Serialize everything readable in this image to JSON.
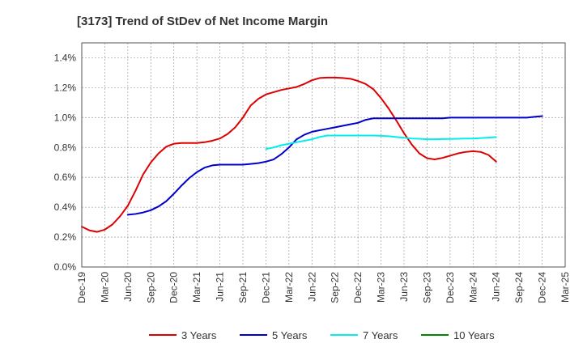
{
  "chart_data": {
    "type": "line",
    "title": "[3173]  Trend of StDev of Net Income Margin",
    "xlabel": "",
    "ylabel": "",
    "x_ticks": [
      "Dec-19",
      "Mar-20",
      "Jun-20",
      "Sep-20",
      "Dec-20",
      "Mar-21",
      "Jun-21",
      "Sep-21",
      "Dec-21",
      "Mar-22",
      "Jun-22",
      "Sep-22",
      "Dec-22",
      "Mar-23",
      "Jun-23",
      "Sep-23",
      "Dec-23",
      "Mar-24",
      "Jun-24",
      "Sep-24",
      "Dec-24",
      "Mar-25"
    ],
    "y_ticks": [
      "0.0%",
      "0.2%",
      "0.4%",
      "0.6%",
      "0.8%",
      "1.0%",
      "1.2%",
      "1.4%"
    ],
    "ylim": [
      0,
      1.5
    ],
    "grid": true,
    "legend_position": "bottom",
    "series": [
      {
        "name": "3 Years",
        "color": "#dd0000",
        "start_index": 0,
        "values": [
          0.27,
          0.245,
          0.235,
          0.25,
          0.285,
          0.34,
          0.41,
          0.51,
          0.62,
          0.7,
          0.76,
          0.805,
          0.825,
          0.83,
          0.83,
          0.83,
          0.835,
          0.845,
          0.86,
          0.89,
          0.935,
          1.0,
          1.08,
          1.125,
          1.155,
          1.17,
          1.185,
          1.195,
          1.205,
          1.225,
          1.25,
          1.265,
          1.268,
          1.268,
          1.265,
          1.26,
          1.245,
          1.225,
          1.19,
          1.13,
          1.06,
          0.98,
          0.895,
          0.82,
          0.76,
          0.728,
          0.72,
          0.73,
          0.745,
          0.76,
          0.77,
          0.775,
          0.77,
          0.75,
          0.705
        ]
      },
      {
        "name": "5 Years",
        "color": "#0000cc",
        "start_index": 6,
        "values": [
          0.35,
          0.355,
          0.365,
          0.38,
          0.405,
          0.44,
          0.49,
          0.545,
          0.595,
          0.635,
          0.665,
          0.68,
          0.685,
          0.685,
          0.685,
          0.685,
          0.69,
          0.695,
          0.705,
          0.72,
          0.755,
          0.8,
          0.855,
          0.885,
          0.905,
          0.915,
          0.925,
          0.935,
          0.945,
          0.955,
          0.965,
          0.985,
          0.995,
          0.995,
          0.995,
          0.995,
          0.995,
          0.995,
          0.995,
          0.995,
          0.995,
          0.995,
          1.0,
          1.0,
          1.0,
          1.0,
          1.0,
          1.0,
          1.0,
          1.0,
          1.0,
          1.0,
          1.0,
          1.005,
          1.01
        ]
      },
      {
        "name": "7 Years",
        "color": "#00eeee",
        "start_index": 24,
        "values": [
          0.79,
          0.8,
          0.815,
          0.825,
          0.835,
          0.845,
          0.855,
          0.87,
          0.88,
          0.88,
          0.88,
          0.88,
          0.88,
          0.88,
          0.88,
          0.878,
          0.875,
          0.87,
          0.865,
          0.86,
          0.858,
          0.855,
          0.855,
          0.856,
          0.857,
          0.858,
          0.86,
          0.86,
          0.863,
          0.866,
          0.87
        ]
      },
      {
        "name": "10 Years",
        "color": "#008800",
        "start_index": 0,
        "values": []
      }
    ]
  }
}
